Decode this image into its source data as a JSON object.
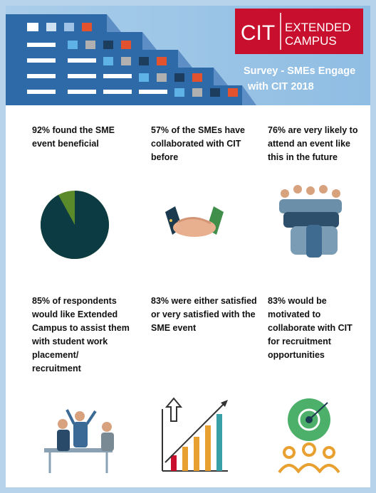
{
  "header": {
    "logo": {
      "mark": "CIT",
      "line1": "EXTENDED",
      "line2": "CAMPUS"
    },
    "title_lines": [
      "Survey -  SMEs Engage",
      "with CIT 2018"
    ]
  },
  "panels": [
    {
      "lines": [
        "92% found the SME",
        "event beneficial"
      ],
      "pie_value": 92
    },
    {
      "lines": [
        "57% of the SMEs have",
        "collaborated with CIT",
        "before"
      ]
    },
    {
      "lines": [
        "76% are very likely to",
        "attend an event like",
        "this in the future"
      ]
    },
    {
      "lines": [
        "85% of respondents",
        "would like Extended",
        "Campus to assist them",
        "with student work",
        "placement/",
        "recruitment"
      ]
    },
    {
      "lines": [
        "83% were either satisfied",
        "or very satisfied with the",
        "SME event"
      ]
    },
    {
      "lines": [
        "83% would be",
        "motivated to",
        "collaborate with CIT",
        "for recruitment",
        "opportunities"
      ]
    }
  ]
}
